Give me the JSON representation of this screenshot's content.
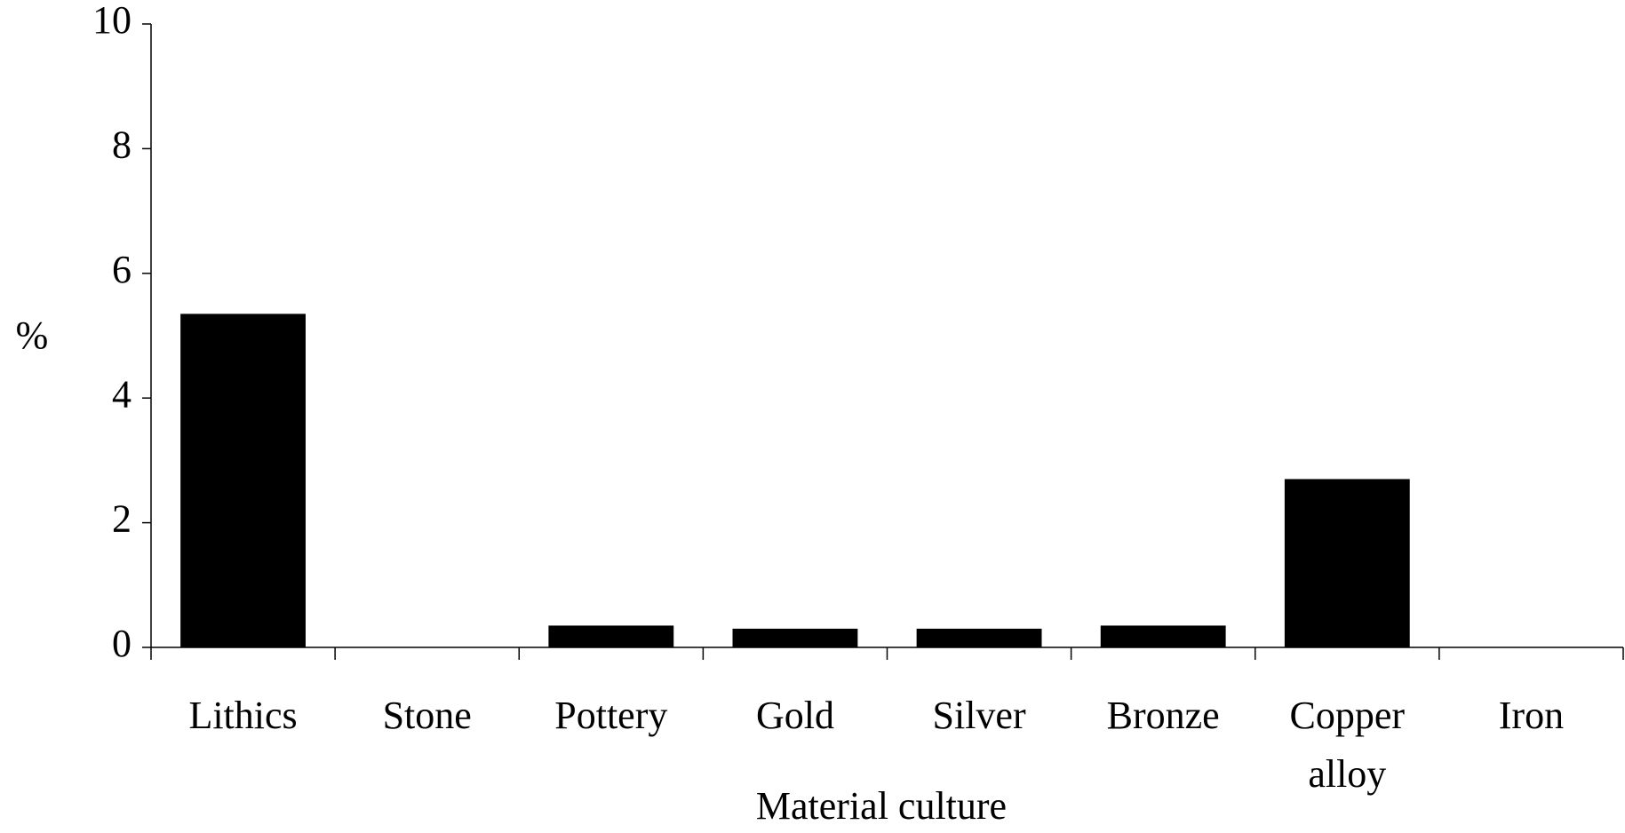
{
  "chart_data": {
    "type": "bar",
    "categories": [
      "Lithics",
      "Stone",
      "Pottery",
      "Gold",
      "Silver",
      "Bronze",
      "Copper alloy",
      "Iron"
    ],
    "values": [
      5.35,
      0,
      0.35,
      0.3,
      0.3,
      0.35,
      2.7,
      0
    ],
    "color": "#000000",
    "ylabel": "%",
    "xlabel": "Material culture",
    "ylim": [
      0,
      10
    ],
    "yticks": [
      0,
      2,
      4,
      6,
      8,
      10
    ],
    "grid": false
  }
}
